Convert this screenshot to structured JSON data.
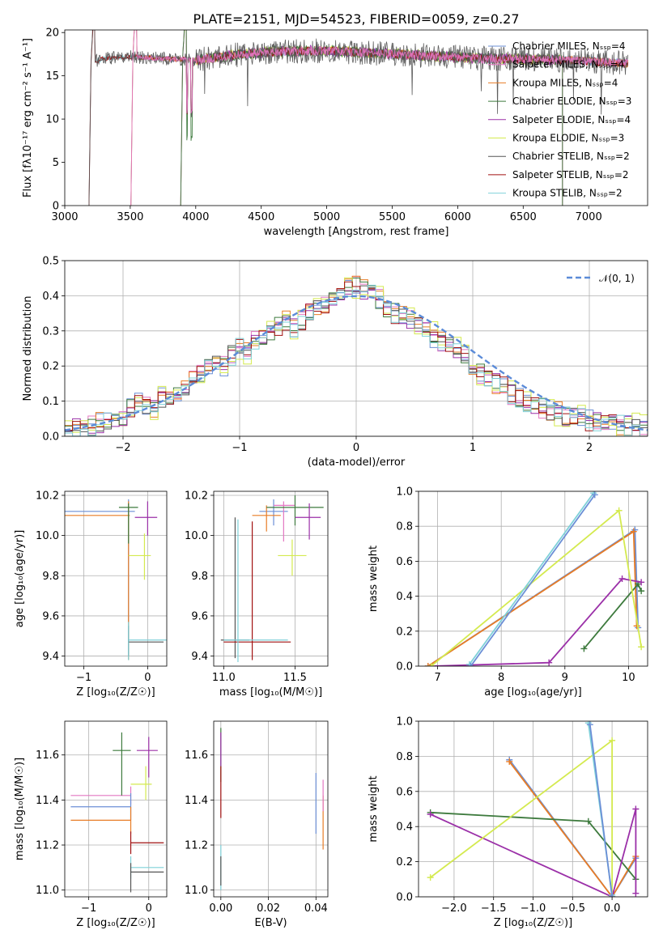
{
  "title": "PLATE=2151, MJD=54523, FIBERID=0059, z=0.27",
  "colors": {
    "s0": "#6b8fd6",
    "s1": "#e377c2",
    "s2": "#e87c25",
    "s3": "#3d7a3d",
    "s4": "#9b30a8",
    "s5": "#d4ea4f",
    "s6": "#555555",
    "s7": "#a11010",
    "s8": "#7fd1d9",
    "normal": "#5b8bd8"
  },
  "chart_data": [
    {
      "id": "spectrum",
      "type": "line",
      "xlabel": "wavelength [Angstrom, rest frame]",
      "ylabel": "Flux [fλ10⁻¹⁷ erg cm⁻² s⁻¹ A⁻¹]",
      "xlim": [
        3000,
        7450
      ],
      "ylim": [
        0,
        20.3
      ],
      "xticks": [
        "3000",
        "3500",
        "4000",
        "4500",
        "5000",
        "5500",
        "6000",
        "6500",
        "7000"
      ],
      "yticks": [
        "0",
        "5",
        "10",
        "15",
        "20"
      ],
      "grid": false,
      "legend_position": "right",
      "series": [
        {
          "name": "Chabrier MILES, Nₛₛₚ=4",
          "start": 3520,
          "end": 7300
        },
        {
          "name": "Salpeter MILES, Nₛₛₚ=4",
          "start": 3520,
          "end": 7300
        },
        {
          "name": "Kroupa MILES, Nₛₛₚ=4",
          "start": 3520,
          "end": 7300
        },
        {
          "name": "Chabrier ELODIE, Nₛₛₚ=3",
          "start": 3900,
          "end": 6800
        },
        {
          "name": "Salpeter ELODIE, Nₛₛₚ=4",
          "start": 3900,
          "end": 6800
        },
        {
          "name": "Kroupa ELODIE, Nₛₛₚ=3",
          "start": 3900,
          "end": 6800
        },
        {
          "name": "Chabrier STELIB, Nₛₛₚ=2",
          "start": 3200,
          "end": 7300
        },
        {
          "name": "Salpeter STELIB, Nₛₛₚ=2",
          "start": 3200,
          "end": 7300
        },
        {
          "name": "Kroupa STELIB, Nₛₛₚ=2",
          "start": 3200,
          "end": 7300
        }
      ],
      "continuum": {
        "x": [
          3200,
          3300,
          3500,
          4000,
          4300,
          4600,
          5000,
          5400,
          5800,
          6200,
          6600,
          7000,
          7300
        ],
        "y": [
          16.5,
          17.0,
          17.2,
          16.8,
          17.4,
          17.8,
          17.9,
          17.6,
          17.3,
          17.0,
          16.9,
          16.7,
          16.4
        ]
      }
    },
    {
      "id": "residuals",
      "type": "step",
      "xlabel": "(data-model)/error",
      "ylabel": "Normed distribution",
      "xlim": [
        -2.5,
        2.5
      ],
      "ylim": [
        0,
        0.5
      ],
      "xticks": [
        "−2",
        "−1",
        "0",
        "1",
        "2"
      ],
      "yticks": [
        "0.0",
        "0.1",
        "0.2",
        "0.3",
        "0.4",
        "0.5"
      ],
      "grid": true,
      "legend_position": "top-right",
      "legend": "𝒩(0, 1)",
      "bin_width": 0.1,
      "base_values": [
        0.02,
        0.02,
        0.025,
        0.03,
        0.04,
        0.045,
        0.05,
        0.055,
        0.08,
        0.1,
        0.09,
        0.08,
        0.11,
        0.12,
        0.13,
        0.14,
        0.16,
        0.18,
        0.2,
        0.21,
        0.2,
        0.23,
        0.25,
        0.24,
        0.27,
        0.29,
        0.3,
        0.31,
        0.33,
        0.31,
        0.33,
        0.36,
        0.37,
        0.38,
        0.39,
        0.4,
        0.42,
        0.43,
        0.42,
        0.41,
        0.39,
        0.36,
        0.35,
        0.34,
        0.33,
        0.31,
        0.3,
        0.28,
        0.27,
        0.26,
        0.25,
        0.23,
        0.2,
        0.18,
        0.17,
        0.15,
        0.14,
        0.12,
        0.11,
        0.1,
        0.09,
        0.08,
        0.07,
        0.07,
        0.06,
        0.05,
        0.05,
        0.045,
        0.04,
        0.04,
        0.035,
        0.03,
        0.03,
        0.025,
        0.02
      ]
    },
    {
      "id": "age-vs-z",
      "type": "errorbar",
      "xlabel": "Z [log₁₀(Z/Z☉)]",
      "ylabel": "age  [log₁₀(age/yr)]",
      "xlim": [
        -1.3,
        0.3
      ],
      "ylim": [
        9.35,
        10.22
      ],
      "xticks": [
        "−1",
        "0"
      ],
      "yticks": [
        "9.4",
        "9.6",
        "9.8",
        "10.0",
        "10.2"
      ],
      "grid": true,
      "points": [
        {
          "c": "s0",
          "x": -0.3,
          "y": 10.12,
          "xl": -1.3,
          "xh": -0.2,
          "yl": 9.4,
          "yh": 10.18
        },
        {
          "c": "s2",
          "x": -0.3,
          "y": 10.1,
          "xl": -1.3,
          "xh": -0.28,
          "yl": 9.38,
          "yh": 10.17
        },
        {
          "c": "s3",
          "x": -0.3,
          "y": 10.14,
          "xl": -0.45,
          "xh": -0.15,
          "yl": 9.96,
          "yh": 10.16
        },
        {
          "c": "s4",
          "x": 0.0,
          "y": 10.09,
          "xl": -0.2,
          "xh": 0.15,
          "yl": 10.0,
          "yh": 10.17
        },
        {
          "c": "s5",
          "x": -0.05,
          "y": 9.9,
          "xl": -0.3,
          "xh": 0.05,
          "yl": 9.78,
          "yh": 10.01
        },
        {
          "c": "s6",
          "x": -0.3,
          "y": 9.47,
          "xl": -0.3,
          "xh": 0.25,
          "yl": 9.4,
          "yh": 9.55
        },
        {
          "c": "s8",
          "x": -0.3,
          "y": 9.48,
          "xl": -0.3,
          "xh": 0.3,
          "yl": 9.38,
          "yh": 9.57
        }
      ]
    },
    {
      "id": "age-vs-mass",
      "type": "errorbar",
      "xlabel": "mass [log₁₀(M/M☉)]",
      "ylabel": "",
      "xlim": [
        10.93,
        11.73
      ],
      "ylim": [
        9.35,
        10.22
      ],
      "xticks": [
        "11.0",
        "11.5"
      ],
      "yticks": [
        "9.4",
        "9.6",
        "9.8",
        "10.0",
        "10.2"
      ],
      "grid": true,
      "points": [
        {
          "c": "s0",
          "x": 11.35,
          "y": 10.12,
          "xl": 11.25,
          "xh": 11.45,
          "yl": 10.05,
          "yh": 10.18
        },
        {
          "c": "s2",
          "x": 11.3,
          "y": 10.1,
          "xl": 11.2,
          "xh": 11.4,
          "yl": 10.02,
          "yh": 10.15
        },
        {
          "c": "s1",
          "x": 11.42,
          "y": 10.15,
          "xl": 11.35,
          "xh": 11.5,
          "yl": 9.97,
          "yh": 10.17
        },
        {
          "c": "s3",
          "x": 11.5,
          "y": 10.14,
          "xl": 11.3,
          "xh": 11.7,
          "yl": 10.05,
          "yh": 10.2
        },
        {
          "c": "s4",
          "x": 11.6,
          "y": 10.09,
          "xl": 11.5,
          "xh": 11.68,
          "yl": 9.98,
          "yh": 10.16
        },
        {
          "c": "s5",
          "x": 11.48,
          "y": 9.9,
          "xl": 11.38,
          "xh": 11.58,
          "yl": 9.8,
          "yh": 9.98
        },
        {
          "c": "s6",
          "x": 11.08,
          "y": 9.48,
          "xl": 10.98,
          "xh": 11.18,
          "yl": 9.39,
          "yh": 10.09
        },
        {
          "c": "s7",
          "x": 11.2,
          "y": 9.47,
          "xl": 11.0,
          "xh": 11.47,
          "yl": 9.38,
          "yh": 10.07
        },
        {
          "c": "s8",
          "x": 11.1,
          "y": 9.48,
          "xl": 11.0,
          "xh": 11.45,
          "yl": 9.37,
          "yh": 10.08
        }
      ]
    },
    {
      "id": "massweight-vs-age",
      "type": "line",
      "xlabel": "age  [log₁₀(age/yr)]",
      "ylabel": "mass weight",
      "xlim": [
        6.7,
        10.3
      ],
      "ylim": [
        0,
        1
      ],
      "xticks": [
        "7",
        "8",
        "9",
        "10"
      ],
      "yticks": [
        "0.0",
        "0.2",
        "0.4",
        "0.6",
        "0.8",
        "1.0"
      ],
      "grid": true,
      "series": [
        {
          "c": "s0",
          "x": [
            6.85,
            10.1,
            10.15
          ],
          "y": [
            0.0,
            0.78,
            0.22
          ]
        },
        {
          "c": "s2",
          "x": [
            6.85,
            10.08,
            10.13
          ],
          "y": [
            0.0,
            0.77,
            0.23
          ]
        },
        {
          "c": "s3",
          "x": [
            9.3,
            10.15,
            10.2
          ],
          "y": [
            0.1,
            0.47,
            0.43
          ]
        },
        {
          "c": "s4",
          "x": [
            6.9,
            8.75,
            9.9,
            10.2
          ],
          "y": [
            0.0,
            0.02,
            0.5,
            0.48
          ]
        },
        {
          "c": "s5",
          "x": [
            6.9,
            9.85,
            10.2
          ],
          "y": [
            0.0,
            0.89,
            0.11
          ]
        },
        {
          "c": "s8",
          "x": [
            7.5,
            9.45
          ],
          "y": [
            0.01,
            0.99
          ]
        },
        {
          "c": "s0",
          "x": [
            7.52,
            9.47
          ],
          "y": [
            0.0,
            0.98
          ]
        }
      ]
    },
    {
      "id": "mass-vs-z",
      "type": "errorbar",
      "xlabel": "Z [log₁₀(Z/Z☉)]",
      "ylabel": "mass [log₁₀(M/M☉)]",
      "xlim": [
        -1.4,
        0.3
      ],
      "ylim": [
        10.97,
        11.75
      ],
      "xticks": [
        "−1",
        "0"
      ],
      "yticks": [
        "11.0",
        "11.2",
        "11.4",
        "11.6"
      ],
      "grid": true,
      "points": [
        {
          "c": "s1",
          "x": -0.3,
          "y": 11.42,
          "xl": -1.3,
          "xh": -0.3,
          "yl": 11.38,
          "yh": 11.46
        },
        {
          "c": "s0",
          "x": -0.3,
          "y": 11.37,
          "xl": -1.3,
          "xh": -0.3,
          "yl": 11.31,
          "yh": 11.43
        },
        {
          "c": "s2",
          "x": -0.3,
          "y": 11.31,
          "xl": -1.3,
          "xh": -0.3,
          "yl": 11.25,
          "yh": 11.37
        },
        {
          "c": "s3",
          "x": -0.45,
          "y": 11.62,
          "xl": -0.6,
          "xh": -0.3,
          "yl": 11.42,
          "yh": 11.7
        },
        {
          "c": "s4",
          "x": 0.0,
          "y": 11.62,
          "xl": -0.2,
          "xh": 0.15,
          "yl": 11.5,
          "yh": 11.68
        },
        {
          "c": "s5",
          "x": -0.05,
          "y": 11.47,
          "xl": -0.3,
          "xh": 0.05,
          "yl": 11.4,
          "yh": 11.55
        },
        {
          "c": "s7",
          "x": -0.3,
          "y": 11.21,
          "xl": -0.3,
          "xh": 0.25,
          "yl": 11.16,
          "yh": 11.26
        },
        {
          "c": "s8",
          "x": -0.3,
          "y": 11.1,
          "xl": -0.3,
          "xh": 0.25,
          "yl": 11.05,
          "yh": 11.15
        },
        {
          "c": "s6",
          "x": -0.3,
          "y": 11.08,
          "xl": -0.3,
          "xh": 0.25,
          "yl": 10.99,
          "yh": 11.12
        }
      ]
    },
    {
      "id": "mass-vs-ebv",
      "type": "errorbar",
      "xlabel": "E(B-V)",
      "ylabel": "",
      "xlim": [
        -0.003,
        0.045
      ],
      "ylim": [
        10.97,
        11.75
      ],
      "xticks": [
        "0.00",
        "0.02",
        "0.04"
      ],
      "yticks": [
        "11.0",
        "11.2",
        "11.4",
        "11.6"
      ],
      "grid": true,
      "points": [
        {
          "c": "s0",
          "x": 0.04,
          "y": 11.37,
          "xl": 0.04,
          "xh": 0.04,
          "yl": 11.25,
          "yh": 11.52
        },
        {
          "c": "s2",
          "x": 0.043,
          "y": 11.31,
          "xl": 0.043,
          "xh": 0.043,
          "yl": 11.18,
          "yh": 11.42
        },
        {
          "c": "s1",
          "x": 0.043,
          "y": 11.42,
          "xl": 0.043,
          "xh": 0.043,
          "yl": 11.35,
          "yh": 11.49
        },
        {
          "c": "s3",
          "x": 0.0,
          "y": 11.62,
          "xl": 0.0,
          "xh": 0.0,
          "yl": 11.48,
          "yh": 11.72
        },
        {
          "c": "s4",
          "x": 0.0,
          "y": 11.62,
          "xl": 0.0,
          "xh": 0.0,
          "yl": 11.55,
          "yh": 11.7
        },
        {
          "c": "s7",
          "x": 0.0,
          "y": 11.45,
          "xl": 0.0,
          "xh": 0.0,
          "yl": 11.32,
          "yh": 11.55
        },
        {
          "c": "s8",
          "x": 0.0,
          "y": 11.1,
          "xl": 0.0,
          "xh": 0.0,
          "yl": 11.0,
          "yh": 11.2
        },
        {
          "c": "s6",
          "x": 0.0,
          "y": 11.08,
          "xl": 0.0,
          "xh": 0.0,
          "yl": 11.02,
          "yh": 11.15
        }
      ]
    },
    {
      "id": "massweight-vs-z",
      "type": "line",
      "xlabel": "Z [log₁₀(Z/Z☉)]",
      "ylabel": "mass weight",
      "xlim": [
        -2.45,
        0.45
      ],
      "ylim": [
        0,
        1
      ],
      "xticks": [
        "−2.0",
        "−1.5",
        "−1.0",
        "−0.5",
        "0.0"
      ],
      "yticks": [
        "0.0",
        "0.2",
        "0.4",
        "0.6",
        "0.8",
        "1.0"
      ],
      "grid": true,
      "series": [
        {
          "c": "s0",
          "x": [
            -1.3,
            0.0,
            0.3
          ],
          "y": [
            0.78,
            0.0,
            0.22
          ]
        },
        {
          "c": "s2",
          "x": [
            -1.3,
            0.0,
            0.3
          ],
          "y": [
            0.77,
            0.0,
            0.23
          ]
        },
        {
          "c": "s3",
          "x": [
            -2.3,
            -0.3,
            0.3
          ],
          "y": [
            0.48,
            0.43,
            0.1
          ]
        },
        {
          "c": "s4",
          "x": [
            -2.3,
            0.0,
            0.3,
            0.3
          ],
          "y": [
            0.47,
            0.0,
            0.5,
            0.02
          ]
        },
        {
          "c": "s5",
          "x": [
            -2.3,
            0.0,
            0.0
          ],
          "y": [
            0.11,
            0.89,
            0.0
          ]
        },
        {
          "c": "s8",
          "x": [
            -0.3,
            0.0
          ],
          "y": [
            0.99,
            0.01
          ]
        },
        {
          "c": "s0",
          "x": [
            -0.28,
            0.0
          ],
          "y": [
            0.98,
            0.0
          ]
        }
      ]
    }
  ]
}
